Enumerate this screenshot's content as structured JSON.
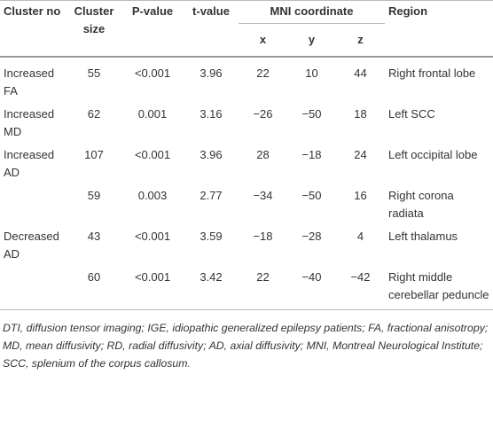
{
  "table": {
    "header": {
      "row1": [
        "Cluster no",
        "Cluster size",
        "P-value",
        "t-value",
        "MNI coordinate",
        "Region"
      ],
      "row2": [
        "x",
        "y",
        "z"
      ]
    },
    "rows": [
      [
        "Increased FA",
        "55",
        "<0.001",
        "3.96",
        "22",
        "10",
        "44",
        "Right frontal lobe"
      ],
      [
        "Increased MD",
        "62",
        "0.001",
        "3.16",
        "−26",
        "−50",
        "18",
        "Left SCC"
      ],
      [
        "Increased AD",
        "107",
        "<0.001",
        "3.96",
        "28",
        "−18",
        "24",
        "Left occipital lobe"
      ],
      [
        null,
        "59",
        "0.003",
        "2.77",
        "−34",
        "−50",
        "16",
        "Right corona radiata"
      ],
      [
        "Decreased AD",
        "43",
        "<0.001",
        "3.59",
        "−18",
        "−28",
        "4",
        "Left thalamus"
      ],
      [
        null,
        "60",
        "<0.001",
        "3.42",
        "22",
        "−40",
        "−42",
        "Right middle cerebellar peduncle"
      ]
    ],
    "footnote": "DTI, diffusion tensor imaging; IGE, idiopathic generalized epilepsy patients; FA, fractional anisotropy; MD, mean diffusivity; RD, radial diffusivity; AD, axial diffusivity; MNI, Montreal Neurological Institute; SCC, splenium of the corpus callosum."
  }
}
